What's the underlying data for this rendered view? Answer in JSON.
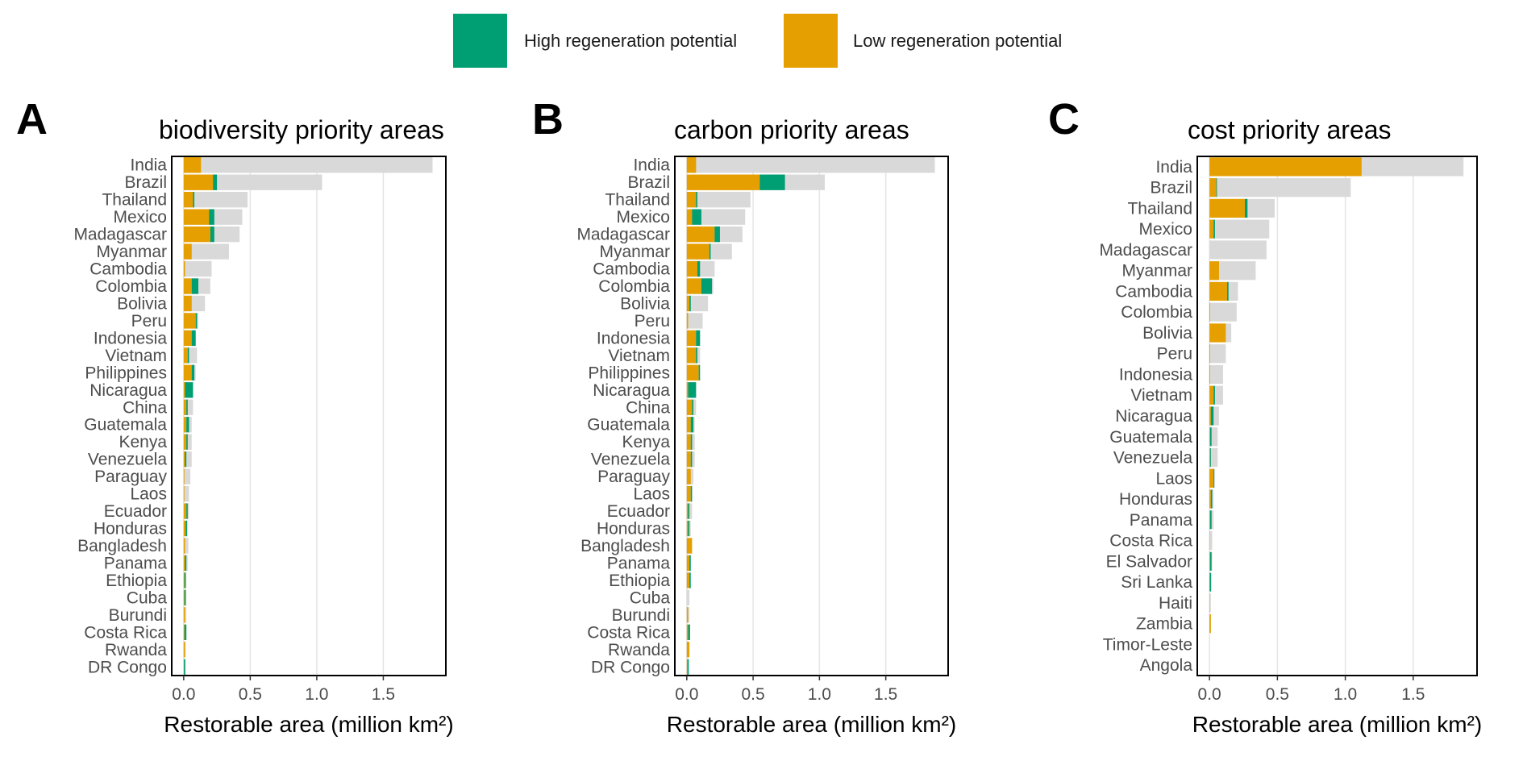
{
  "legend": {
    "items": [
      {
        "label": "High regeneration potential",
        "color": "#009E73"
      },
      {
        "label": "Low regeneration potential",
        "color": "#E69F00"
      }
    ]
  },
  "colors": {
    "high": "#009E73",
    "low": "#E69F00",
    "total": "#D9D9D9",
    "grid": "#E5E5E5",
    "frame": "#000000"
  },
  "chart_data": [
    {
      "type": "bar",
      "panel_letter": "A",
      "title": "biodiversity priority areas",
      "xlabel": "Restorable area (million km²)",
      "xlim": [
        -0.09,
        1.97
      ],
      "xticks": [
        0.0,
        0.5,
        1.0,
        1.5
      ],
      "xtick_labels": [
        "0.0",
        "0.5",
        "1.0",
        "1.5"
      ],
      "grid": true,
      "categories": [
        "India",
        "Brazil",
        "Thailand",
        "Mexico",
        "Madagascar",
        "Myanmar",
        "Cambodia",
        "Colombia",
        "Bolivia",
        "Peru",
        "Indonesia",
        "Vietnam",
        "Philippines",
        "Nicaragua",
        "China",
        "Guatemala",
        "Kenya",
        "Venezuela",
        "Paraguay",
        "Laos",
        "Ecuador",
        "Honduras",
        "Bangladesh",
        "Panama",
        "Ethiopia",
        "Cuba",
        "Burundi",
        "Costa Rica",
        "Rwanda",
        "DR Congo"
      ],
      "series": [
        {
          "name": "Low regeneration potential",
          "values": [
            0.13,
            0.22,
            0.07,
            0.19,
            0.2,
            0.06,
            0.01,
            0.06,
            0.06,
            0.09,
            0.06,
            0.03,
            0.06,
            0.01,
            0.02,
            0.02,
            0.02,
            0.01,
            0.005,
            0.005,
            0.02,
            0.015,
            0.01,
            0.01,
            0.005,
            0.005,
            0.01,
            0.005,
            0.01,
            0.002
          ]
        },
        {
          "name": "High regeneration potential",
          "values": [
            0.0,
            0.03,
            0.01,
            0.04,
            0.03,
            0.0,
            0.0,
            0.05,
            0.0,
            0.01,
            0.03,
            0.01,
            0.02,
            0.06,
            0.01,
            0.02,
            0.01,
            0.01,
            0.0,
            0.0,
            0.01,
            0.01,
            0.0,
            0.01,
            0.01,
            0.01,
            0.0,
            0.015,
            0.0,
            0.01
          ]
        },
        {
          "name": "Total restorable area",
          "values": [
            1.87,
            1.04,
            0.48,
            0.44,
            0.42,
            0.34,
            0.21,
            0.2,
            0.16,
            0.11,
            0.09,
            0.1,
            0.09,
            0.07,
            0.07,
            0.06,
            0.06,
            0.06,
            0.05,
            0.04,
            0.04,
            0.03,
            0.035,
            0.03,
            0.02,
            0.02,
            0.02,
            0.02,
            0.015,
            0.01
          ]
        }
      ]
    },
    {
      "type": "bar",
      "panel_letter": "B",
      "title": "carbon priority areas",
      "xlabel": "Restorable area (million km²)",
      "xlim": [
        -0.09,
        1.97
      ],
      "xticks": [
        0.0,
        0.5,
        1.0,
        1.5
      ],
      "xtick_labels": [
        "0.0",
        "0.5",
        "1.0",
        "1.5"
      ],
      "grid": true,
      "categories": [
        "India",
        "Brazil",
        "Thailand",
        "Mexico",
        "Madagascar",
        "Myanmar",
        "Cambodia",
        "Colombia",
        "Bolivia",
        "Peru",
        "Indonesia",
        "Vietnam",
        "Philippines",
        "Nicaragua",
        "China",
        "Guatemala",
        "Kenya",
        "Venezuela",
        "Paraguay",
        "Laos",
        "Ecuador",
        "Honduras",
        "Bangladesh",
        "Panama",
        "Ethiopia",
        "Cuba",
        "Burundi",
        "Costa Rica",
        "Rwanda",
        "DR Congo"
      ],
      "series": [
        {
          "name": "Low regeneration potential",
          "values": [
            0.07,
            0.55,
            0.07,
            0.04,
            0.21,
            0.17,
            0.08,
            0.11,
            0.02,
            0.01,
            0.07,
            0.07,
            0.09,
            0.01,
            0.04,
            0.03,
            0.03,
            0.03,
            0.03,
            0.03,
            0.01,
            0.01,
            0.04,
            0.02,
            0.02,
            0.0,
            0.01,
            0.01,
            0.02,
            0.005
          ]
        },
        {
          "name": "High regeneration potential",
          "values": [
            0.0,
            0.19,
            0.01,
            0.07,
            0.04,
            0.01,
            0.02,
            0.08,
            0.01,
            0.0,
            0.03,
            0.01,
            0.01,
            0.06,
            0.01,
            0.02,
            0.01,
            0.01,
            0.0,
            0.01,
            0.01,
            0.01,
            0.0,
            0.01,
            0.01,
            0.0,
            0.0,
            0.015,
            0.0,
            0.01
          ]
        },
        {
          "name": "Total restorable area",
          "values": [
            1.87,
            1.04,
            0.48,
            0.44,
            0.42,
            0.34,
            0.21,
            0.2,
            0.16,
            0.12,
            0.1,
            0.1,
            0.09,
            0.07,
            0.07,
            0.06,
            0.06,
            0.06,
            0.05,
            0.04,
            0.04,
            0.03,
            0.035,
            0.03,
            0.02,
            0.02,
            0.02,
            0.02,
            0.015,
            0.01
          ]
        }
      ]
    },
    {
      "type": "bar",
      "panel_letter": "C",
      "title": "cost priority areas",
      "xlabel": "Restorable area (million km²)",
      "xlim": [
        -0.09,
        1.97
      ],
      "xticks": [
        0.0,
        0.5,
        1.0,
        1.5
      ],
      "xtick_labels": [
        "0.0",
        "0.5",
        "1.0",
        "1.5"
      ],
      "grid": true,
      "categories": [
        "India",
        "Brazil",
        "Thailand",
        "Mexico",
        "Madagascar",
        "Myanmar",
        "Cambodia",
        "Colombia",
        "Bolivia",
        "Peru",
        "Indonesia",
        "Vietnam",
        "Nicaragua",
        "Guatemala",
        "Venezuela",
        "Laos",
        "Honduras",
        "Panama",
        "Costa Rica",
        "El Salvador",
        "Sri Lanka",
        "Haiti",
        "Zambia",
        "Timor-Leste",
        "Angola"
      ],
      "series": [
        {
          "name": "Low regeneration potential",
          "values": [
            1.12,
            0.05,
            0.26,
            0.03,
            0.0,
            0.07,
            0.13,
            0.005,
            0.12,
            0.005,
            0.005,
            0.03,
            0.01,
            0.005,
            0.005,
            0.03,
            0.01,
            0.005,
            0.002,
            0.005,
            0.002,
            0.002,
            0.01,
            0.0,
            0.0
          ]
        },
        {
          "name": "High regeneration potential",
          "values": [
            0.0,
            0.005,
            0.02,
            0.01,
            0.0,
            0.0,
            0.01,
            0.0,
            0.0,
            0.0,
            0.0,
            0.01,
            0.02,
            0.01,
            0.005,
            0.005,
            0.01,
            0.01,
            0.0,
            0.01,
            0.01,
            0.0,
            0.0,
            0.0,
            0.0
          ]
        },
        {
          "name": "Total restorable area",
          "values": [
            1.87,
            1.04,
            0.48,
            0.44,
            0.42,
            0.34,
            0.21,
            0.2,
            0.16,
            0.12,
            0.1,
            0.1,
            0.07,
            0.06,
            0.06,
            0.04,
            0.03,
            0.03,
            0.02,
            0.02,
            0.01,
            0.01,
            0.01,
            0.0,
            0.0
          ]
        }
      ]
    }
  ]
}
